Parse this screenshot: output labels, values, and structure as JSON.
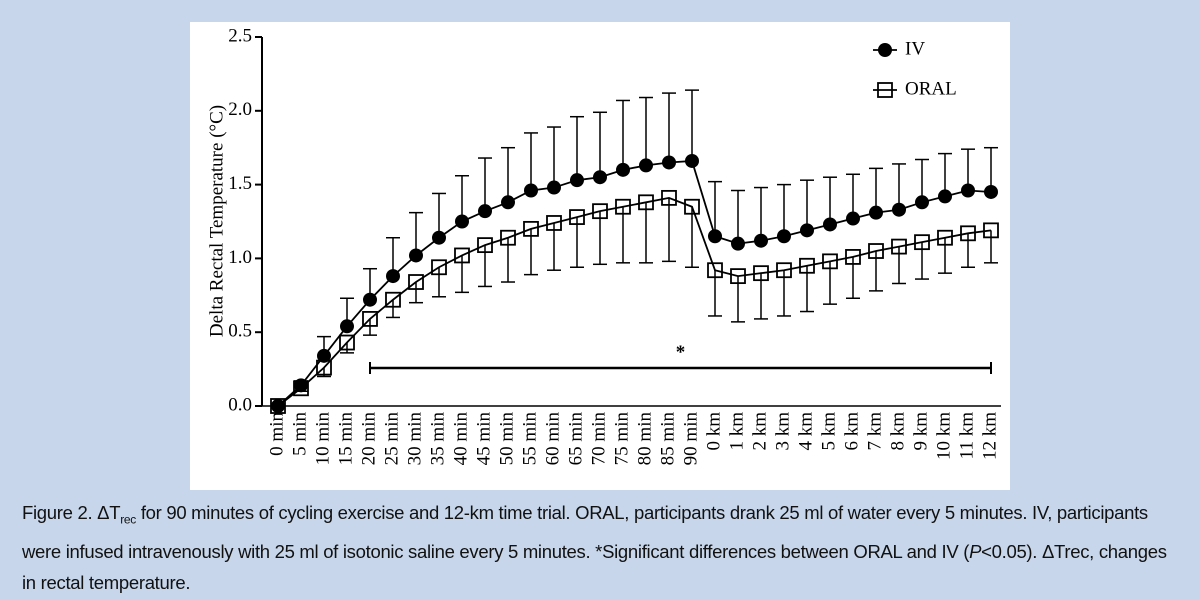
{
  "chart_data": {
    "type": "line",
    "y_label": "Delta Rectal Temperature (°C)",
    "categories": [
      "0 min",
      "5 min",
      "10 min",
      "15 min",
      "20 min",
      "25 min",
      "30 min",
      "35 min",
      "40 min",
      "45 min",
      "50 min",
      "55 min",
      "60 min",
      "65 min",
      "70 min",
      "75 min",
      "80 min",
      "85 min",
      "90 min",
      "0 km",
      "1 km",
      "2 km",
      "3 km",
      "4 km",
      "5 km",
      "6 km",
      "7 km",
      "8 km",
      "9 km",
      "10 km",
      "11 km",
      "12 km"
    ],
    "series": [
      {
        "name": "IV",
        "color": "#000000",
        "marker": "circle",
        "error_direction": "up",
        "values": [
          0.0,
          0.14,
          0.34,
          0.54,
          0.72,
          0.88,
          1.02,
          1.14,
          1.25,
          1.32,
          1.38,
          1.46,
          1.48,
          1.53,
          1.55,
          1.6,
          1.63,
          1.65,
          1.66,
          1.15,
          1.1,
          1.12,
          1.15,
          1.19,
          1.23,
          1.27,
          1.31,
          1.33,
          1.38,
          1.42,
          1.46,
          1.45
        ],
        "errors": [
          0.0,
          0.03,
          0.13,
          0.19,
          0.21,
          0.26,
          0.29,
          0.3,
          0.31,
          0.36,
          0.37,
          0.39,
          0.41,
          0.43,
          0.44,
          0.47,
          0.46,
          0.47,
          0.48,
          0.37,
          0.36,
          0.36,
          0.35,
          0.34,
          0.32,
          0.3,
          0.3,
          0.31,
          0.29,
          0.29,
          0.28,
          0.3
        ]
      },
      {
        "name": "ORAL",
        "color": "#000000",
        "marker": "square",
        "error_direction": "down",
        "values": [
          0.0,
          0.12,
          0.26,
          0.43,
          0.59,
          0.72,
          0.84,
          0.94,
          1.02,
          1.09,
          1.14,
          1.2,
          1.24,
          1.28,
          1.32,
          1.35,
          1.38,
          1.41,
          1.35,
          0.92,
          0.88,
          0.9,
          0.92,
          0.95,
          0.98,
          1.01,
          1.05,
          1.08,
          1.11,
          1.14,
          1.17,
          1.19
        ],
        "errors": [
          0.0,
          0.02,
          0.06,
          0.07,
          0.11,
          0.12,
          0.14,
          0.2,
          0.25,
          0.28,
          0.3,
          0.31,
          0.32,
          0.34,
          0.36,
          0.38,
          0.41,
          0.43,
          0.41,
          0.31,
          0.31,
          0.31,
          0.31,
          0.31,
          0.29,
          0.28,
          0.27,
          0.25,
          0.25,
          0.24,
          0.23,
          0.22
        ]
      }
    ],
    "ylim": [
      0,
      2.5
    ],
    "yticks": [
      {
        "value": 0,
        "label": "0.0"
      },
      0.5,
      {
        "value": 1,
        "label": "1.0"
      },
      1.5,
      {
        "value": 2,
        "label": "2.0"
      },
      2.5
    ],
    "legend": "upper right",
    "significance": {
      "label": "*",
      "start": "20 min",
      "end": "12 km"
    }
  },
  "caption": [
    "Figure 2.  ΔT",
    "rec",
    " for 90 minutes of cycling exercise and 12-km time trial. ORAL, participants drank 25 ml of water every 5 minutes. IV, participants were infused intravenously with 25 ml of isotonic saline every 5 minutes. *Significant differences between ORAL and IV (",
    "P",
    "<0.05). ΔTrec, changes in rectal temperature."
  ]
}
